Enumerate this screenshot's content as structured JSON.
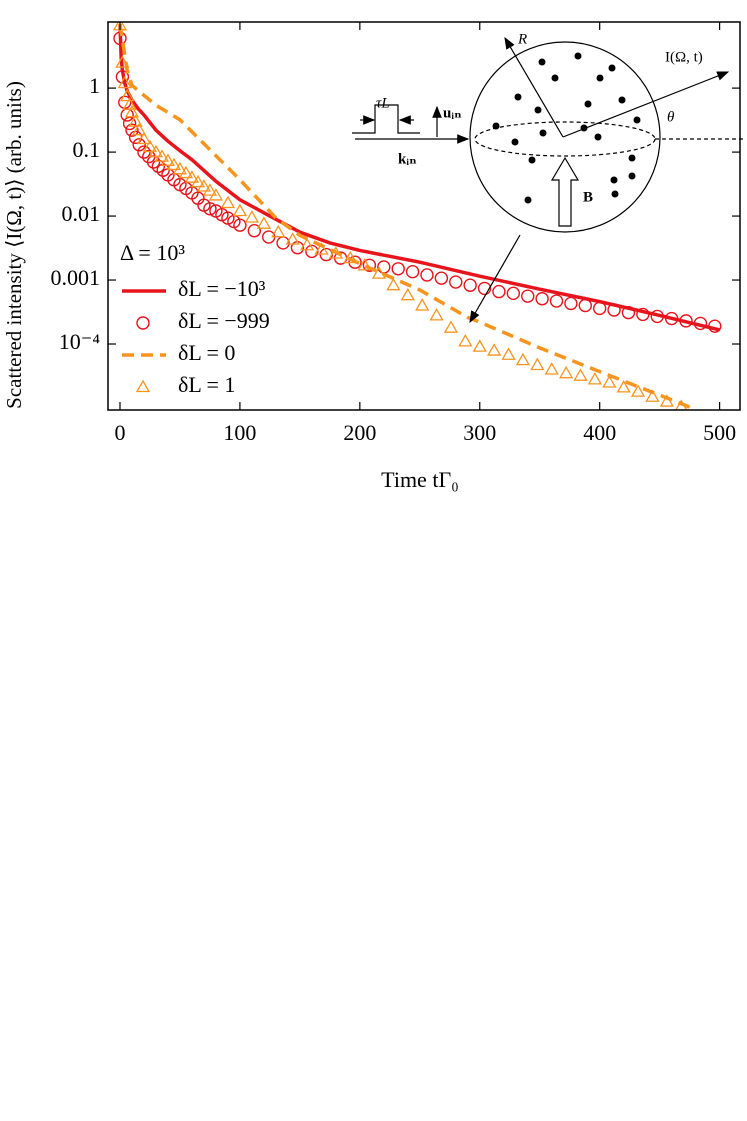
{
  "chart_data": {
    "type": "line",
    "x_label": "Time tΓ₀",
    "y_label": "Scattered intensity ⟨I(Ω, t)⟩ (arb. units)",
    "log_y": true,
    "xlim": [
      -10,
      517
    ],
    "ylim": [
      9.3e-06,
      10.8
    ],
    "xticks": [
      0,
      100,
      200,
      300,
      400,
      500
    ],
    "yticks": [
      1,
      0.1,
      0.01,
      0.001,
      {
        "value": 0.0001,
        "label": "10⁻⁴"
      }
    ],
    "legend_title": "Δ = 10³",
    "legend_position": "left",
    "inset_labels": [
      "R",
      "I(Ω, t)",
      "τL",
      "uᵢₙ",
      "kᵢₙ",
      "θ",
      "B"
    ],
    "series": [
      {
        "name": "δL = −10³",
        "color": "#e8141c",
        "style": "solid",
        "x": [
          0,
          1,
          2,
          4,
          6,
          10,
          15,
          20,
          30,
          40,
          50,
          60,
          80,
          100,
          125,
          150,
          175,
          200,
          250,
          300,
          350,
          400,
          450,
          500
        ],
        "values": [
          10,
          3,
          1.9,
          1.2,
          0.9,
          0.65,
          0.48,
          0.38,
          0.22,
          0.148,
          0.105,
          0.076,
          0.035,
          0.018,
          0.01,
          0.0056,
          0.0038,
          0.0029,
          0.0019,
          0.00115,
          0.00072,
          0.00046,
          0.00028,
          0.000166
        ]
      },
      {
        "name": "δL = −999",
        "color": "#e8141c",
        "style": "markers",
        "marker": "circle",
        "x": [
          0,
          2,
          4,
          6,
          8,
          10,
          13,
          16,
          20,
          24,
          28,
          32,
          36,
          40,
          45,
          50,
          55,
          60,
          65,
          70,
          75,
          80,
          85,
          90,
          95,
          100,
          112,
          124,
          136,
          148,
          160,
          172,
          184,
          196,
          208,
          220,
          232,
          244,
          256,
          268,
          280,
          292,
          304,
          316,
          328,
          340,
          352,
          364,
          376,
          388,
          400,
          412,
          424,
          436,
          448,
          460,
          472,
          484,
          496
        ],
        "values": [
          6,
          1.5,
          0.6,
          0.38,
          0.28,
          0.22,
          0.17,
          0.13,
          0.1,
          0.085,
          0.07,
          0.06,
          0.052,
          0.044,
          0.037,
          0.031,
          0.027,
          0.023,
          0.019,
          0.0148,
          0.013,
          0.012,
          0.0105,
          0.0093,
          0.0082,
          0.0072,
          0.0059,
          0.0047,
          0.0038,
          0.0032,
          0.0028,
          0.0025,
          0.0022,
          0.0019,
          0.0017,
          0.0016,
          0.0015,
          0.00135,
          0.0012,
          0.00107,
          0.00093,
          0.00083,
          0.00074,
          0.00066,
          0.00062,
          0.00056,
          0.00051,
          0.00047,
          0.00043,
          0.0004,
          0.00036,
          0.00034,
          0.00031,
          0.00029,
          0.00027,
          0.00025,
          0.00023,
          0.00021,
          0.00019
        ]
      },
      {
        "name": "δL = 0",
        "color": "#f7941d",
        "style": "dashed",
        "x": [
          0,
          6,
          10,
          30,
          50,
          100,
          130,
          150,
          200,
          250,
          290,
          300,
          350,
          400,
          450,
          480
        ],
        "values": [
          10,
          1.9,
          1.1,
          0.54,
          0.32,
          0.037,
          0.0093,
          0.005,
          0.0018,
          0.0007,
          0.00026,
          0.00022,
          8.7e-05,
          3.7e-05,
          1.59e-05,
          9.5e-06
        ]
      },
      {
        "name": "δL = 1",
        "color": "#f7941d",
        "style": "markers",
        "marker": "triangle",
        "x": [
          0,
          2,
          4,
          6,
          8,
          10,
          13,
          16,
          20,
          25,
          30,
          35,
          40,
          45,
          50,
          55,
          60,
          65,
          70,
          75,
          80,
          90,
          100,
          110,
          120,
          132,
          144,
          156,
          168,
          180,
          192,
          204,
          216,
          228,
          240,
          252,
          264,
          276,
          288,
          300,
          312,
          324,
          336,
          348,
          360,
          372,
          384,
          396,
          408,
          420,
          432,
          444,
          456,
          468
        ],
        "values": [
          9.6,
          2.5,
          1.2,
          0.75,
          0.55,
          0.42,
          0.3,
          0.22,
          0.16,
          0.12,
          0.1,
          0.085,
          0.073,
          0.063,
          0.054,
          0.047,
          0.04,
          0.034,
          0.029,
          0.025,
          0.021,
          0.016,
          0.012,
          0.0095,
          0.0076,
          0.0056,
          0.0043,
          0.0035,
          0.003,
          0.0026,
          0.0022,
          0.0017,
          0.00126,
          0.00083,
          0.00058,
          0.0004,
          0.00028,
          0.00018,
          0.00011,
          9.1e-05,
          7.9e-05,
          6.8e-05,
          5.6e-05,
          4.7e-05,
          4e-05,
          3.5e-05,
          3.2e-05,
          2.8e-05,
          2.5e-05,
          2.1e-05,
          1.8e-05,
          1.5e-05,
          1.26e-05,
          1.05e-05
        ]
      }
    ]
  }
}
